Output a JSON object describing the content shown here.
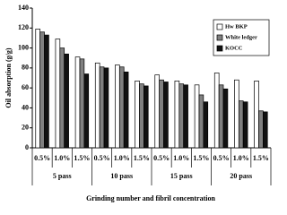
{
  "chart_data": {
    "type": "bar",
    "y_label": "Oil absorption (g/g)",
    "x_label": "Grinding number and fibril concentration",
    "categories": [
      "0.5%",
      "1.0%",
      "1.5%",
      "0.5%",
      "1.0%",
      "1.5%",
      "0.5%",
      "1.0%",
      "1.5%",
      "0.5%",
      "1.0%",
      "1.5%"
    ],
    "groups": [
      "5 pass",
      "10 pass",
      "15 pass",
      "20 pass"
    ],
    "series": [
      {
        "name": "Hw BKP",
        "color": "#ffffff",
        "values": [
          119,
          109,
          91,
          85,
          83,
          67,
          73,
          67,
          63,
          75,
          68,
          67
        ]
      },
      {
        "name": "White ledger",
        "color": "#808080",
        "values": [
          116,
          100,
          89,
          81,
          81,
          64,
          68,
          64,
          53,
          63,
          47,
          37
        ]
      },
      {
        "name": "KOCC",
        "color": "#111111",
        "values": [
          113,
          94,
          74,
          80,
          76,
          62,
          66,
          63,
          46,
          59,
          46,
          36
        ]
      }
    ],
    "ylim": [
      0,
      140
    ],
    "yticks": [
      0,
      20,
      40,
      60,
      80,
      100,
      120,
      140
    ],
    "legend": "top-right"
  }
}
